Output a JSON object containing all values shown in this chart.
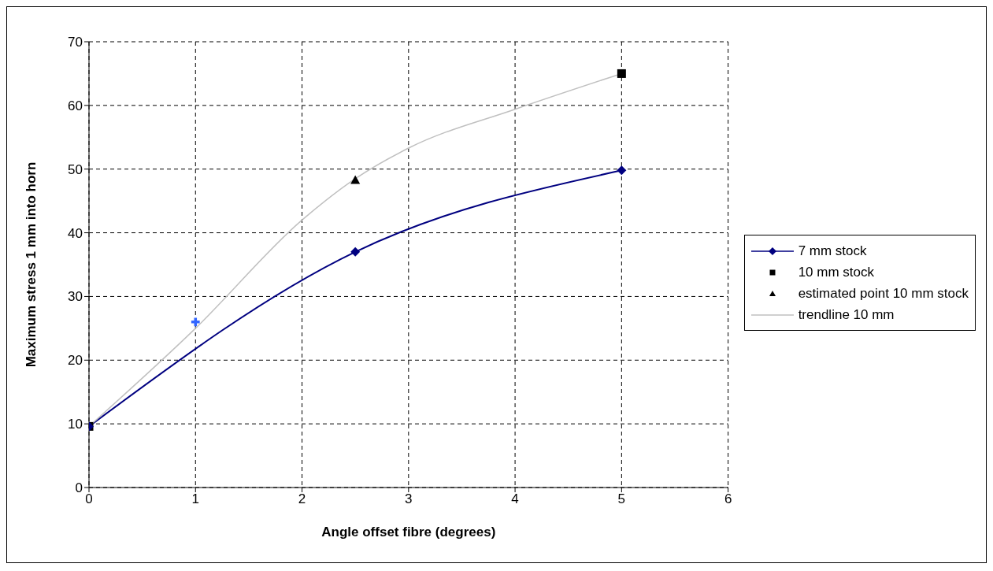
{
  "chart_data": {
    "type": "line",
    "xlabel": "Angle offset fibre (degrees)",
    "ylabel": "Maximum stress 1 mm into horn",
    "xlim": [
      0,
      6
    ],
    "xticks": [
      0,
      1,
      2,
      3,
      4,
      5,
      6
    ],
    "ylim": [
      0,
      70
    ],
    "yticks": [
      0,
      10,
      20,
      30,
      40,
      50,
      60,
      70
    ],
    "grid": true,
    "legend": "right",
    "series": [
      {
        "name": "7 mm stock",
        "color": "#000080",
        "marker": "diamond",
        "x": [
          0,
          2.5,
          5
        ],
        "values": [
          9.6,
          37,
          49.8
        ]
      },
      {
        "name": "10 mm stock",
        "type": "scatter",
        "color": "#000000",
        "marker": "square",
        "x": [
          0,
          5
        ],
        "values": [
          9.6,
          65
        ]
      },
      {
        "name": "estimated point 10 mm stock",
        "type": "scatter",
        "color": "#000000",
        "marker": "triangle",
        "x": [
          2.5
        ],
        "values": [
          48.3
        ]
      },
      {
        "name": "trendline 10 mm",
        "color": "#c0c0c0",
        "marker": "none",
        "x": [
          0,
          1,
          2,
          2.5,
          3,
          4,
          5
        ],
        "values": [
          9.6,
          25,
          42,
          48.5,
          53.3,
          59.4,
          65
        ]
      },
      {
        "type": "scatter",
        "color": "#3366ff",
        "marker": "cross",
        "x": [
          1
        ],
        "values": [
          26
        ]
      }
    ]
  }
}
